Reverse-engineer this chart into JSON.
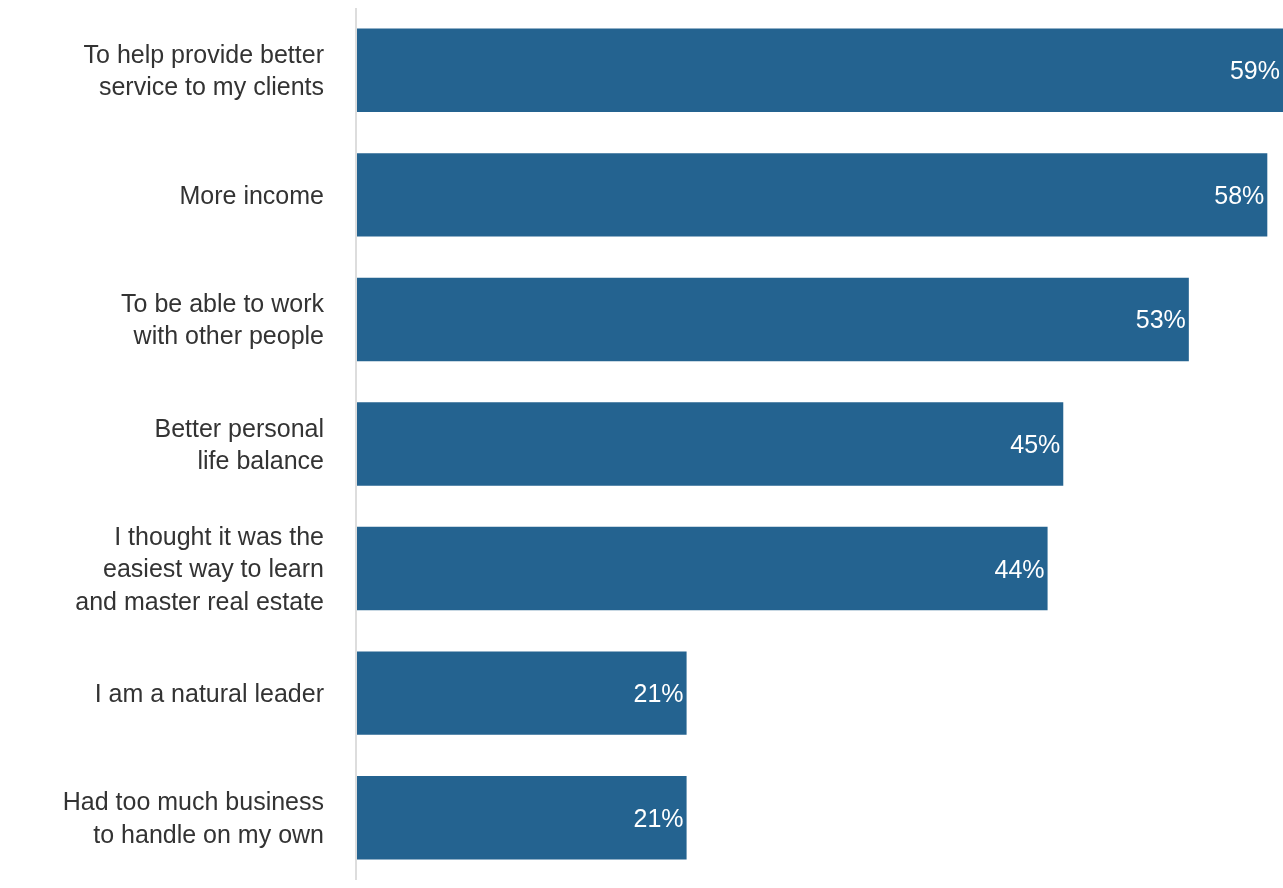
{
  "chart_data": {
    "type": "bar",
    "orientation": "horizontal",
    "categories": [
      "To help provide better\nservice to my clients",
      "More income",
      "To be able to work\nwith other people",
      "Better personal\nlife balance",
      "I thought it was the\neasiest way to learn\nand master real estate",
      "I am a natural leader",
      "Had too much business\nto handle on my own"
    ],
    "values": [
      59,
      58,
      53,
      45,
      44,
      21,
      21
    ],
    "value_labels": [
      "59%",
      "58%",
      "53%",
      "45%",
      "44%",
      "21%",
      "21%"
    ],
    "color": "#246390"
  }
}
